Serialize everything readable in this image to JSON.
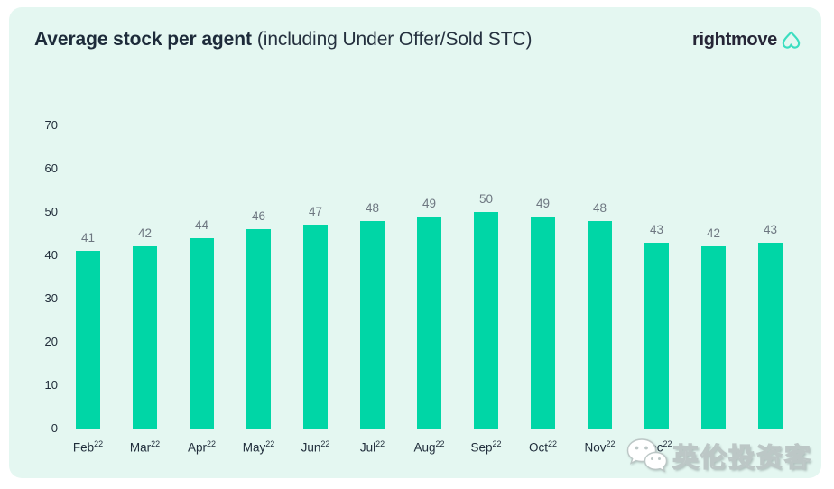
{
  "page": {
    "background": "#ffffff",
    "card_background": "#e4f7f1"
  },
  "header": {
    "title_bold": "Average stock per agent",
    "title_light": "(including Under Offer/Sold STC)",
    "logo": {
      "text": "rightmove",
      "icon": "rightmove-house-icon",
      "icon_color": "#3bdec0",
      "text_color": "#262637"
    }
  },
  "chart_data": {
    "type": "bar",
    "title": "Average stock per agent (including Under Offer/Sold STC)",
    "categories": [
      "Feb 22",
      "Mar 22",
      "Apr 22",
      "May 22",
      "Jun 22",
      "Jul 22",
      "Aug 22",
      "Sep 22",
      "Oct 22",
      "Nov 22",
      "Dec 22",
      "",
      ""
    ],
    "values": [
      41,
      42,
      44,
      46,
      47,
      48,
      49,
      50,
      49,
      48,
      43,
      42,
      43
    ],
    "xlabel": "",
    "ylabel": "",
    "ylim": [
      0,
      70
    ],
    "yticks": [
      70,
      60,
      50,
      40,
      30,
      20,
      10,
      0
    ],
    "grid": false,
    "legend": false,
    "bar_color": "#00d6a6",
    "value_labels_position": "above-bars"
  },
  "months": [
    {
      "m": "Feb",
      "y": "22"
    },
    {
      "m": "Mar",
      "y": "22"
    },
    {
      "m": "Apr",
      "y": "22"
    },
    {
      "m": "May",
      "y": "22"
    },
    {
      "m": "Jun",
      "y": "22"
    },
    {
      "m": "Jul",
      "y": "22"
    },
    {
      "m": "Aug",
      "y": "22"
    },
    {
      "m": "Sep",
      "y": "22"
    },
    {
      "m": "Oct",
      "y": "22"
    },
    {
      "m": "Nov",
      "y": "22"
    },
    {
      "m": "Dec",
      "y": "22"
    },
    {
      "m": "",
      "y": ""
    },
    {
      "m": "",
      "y": ""
    }
  ],
  "watermark": {
    "text": "英伦投资客",
    "icon": "wechat-icon"
  },
  "colors": {
    "title": "#1d2b3a",
    "value_label": "#6d7680",
    "axis_label": "#212d3a",
    "bar": "#00d6a6",
    "card_mint": "#e4f7f1",
    "logo_teal": "#3bdec0"
  }
}
